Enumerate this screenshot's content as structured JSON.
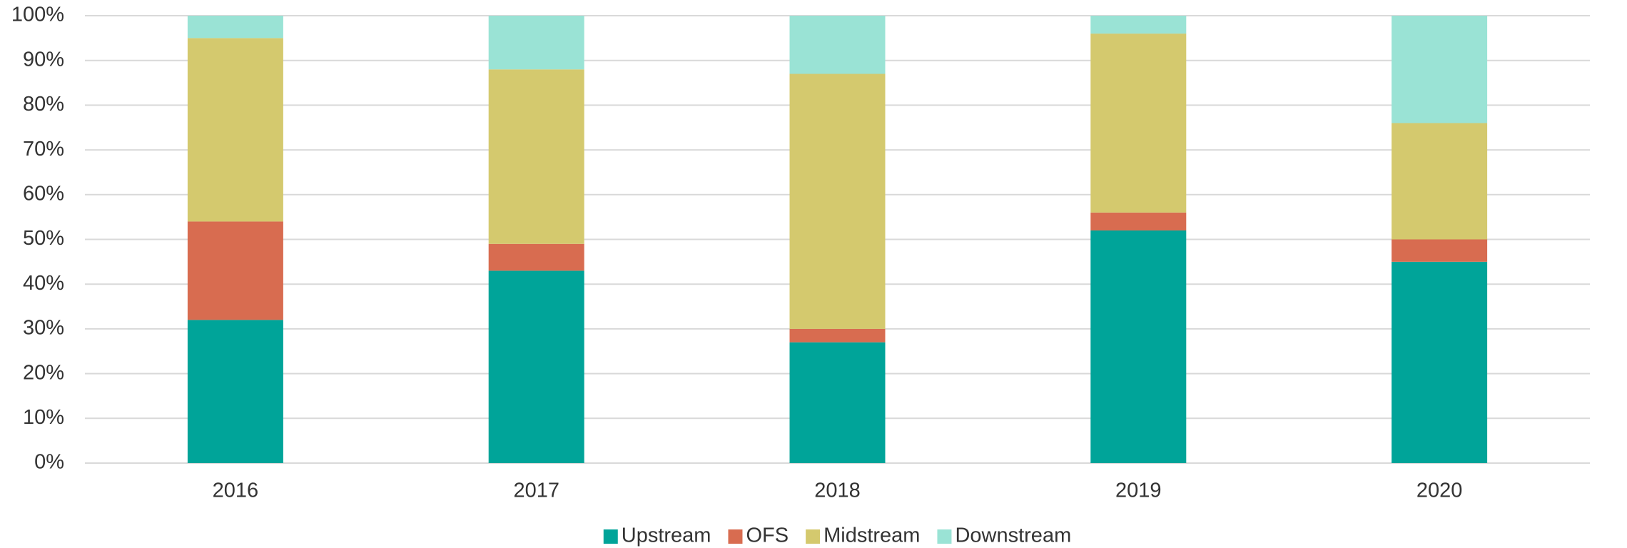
{
  "chart_data": {
    "type": "stacked_bar",
    "categories": [
      "2016",
      "2017",
      "2018",
      "2019",
      "2020"
    ],
    "series": [
      {
        "name": "Upstream",
        "color": "#00a499",
        "values": [
          32,
          43,
          27,
          52,
          45
        ]
      },
      {
        "name": "OFS",
        "color": "#d86c50",
        "values": [
          22,
          6,
          3,
          4,
          5
        ]
      },
      {
        "name": "Midstream",
        "color": "#d4c96e",
        "values": [
          41,
          39,
          57,
          40,
          26
        ]
      },
      {
        "name": "Downstream",
        "color": "#9ae3d5",
        "values": [
          5,
          12,
          13,
          4,
          24
        ]
      }
    ],
    "ylim": [
      0,
      100
    ],
    "yticks": [
      {
        "value": 0,
        "label": "0%"
      },
      {
        "value": 10,
        "label": "10%"
      },
      {
        "value": 20,
        "label": "20%"
      },
      {
        "value": 30,
        "label": "30%"
      },
      {
        "value": 40,
        "label": "40%"
      },
      {
        "value": 50,
        "label": "50%"
      },
      {
        "value": 60,
        "label": "60%"
      },
      {
        "value": 70,
        "label": "70%"
      },
      {
        "value": 80,
        "label": "80%"
      },
      {
        "value": 90,
        "label": "90%"
      },
      {
        "value": 100,
        "label": "100%"
      }
    ],
    "grid": true,
    "legend": "bottom"
  }
}
